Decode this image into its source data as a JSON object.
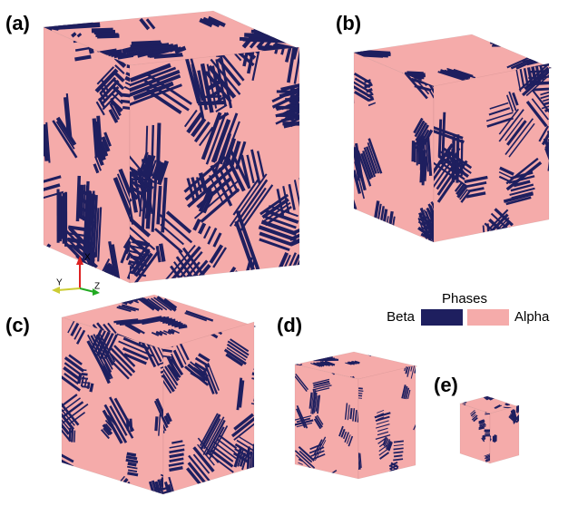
{
  "panels": [
    {
      "label": "(a)"
    },
    {
      "label": "(b)"
    },
    {
      "label": "(c)"
    },
    {
      "label": "(d)"
    },
    {
      "label": "(e)"
    }
  ],
  "legend": {
    "title": "Phases",
    "entries": [
      {
        "name": "Beta",
        "color": "#1e1f5f"
      },
      {
        "name": "Alpha",
        "color": "#f5abaa"
      }
    ]
  },
  "axes": {
    "x": "X",
    "y": "Y",
    "z": "Z"
  }
}
